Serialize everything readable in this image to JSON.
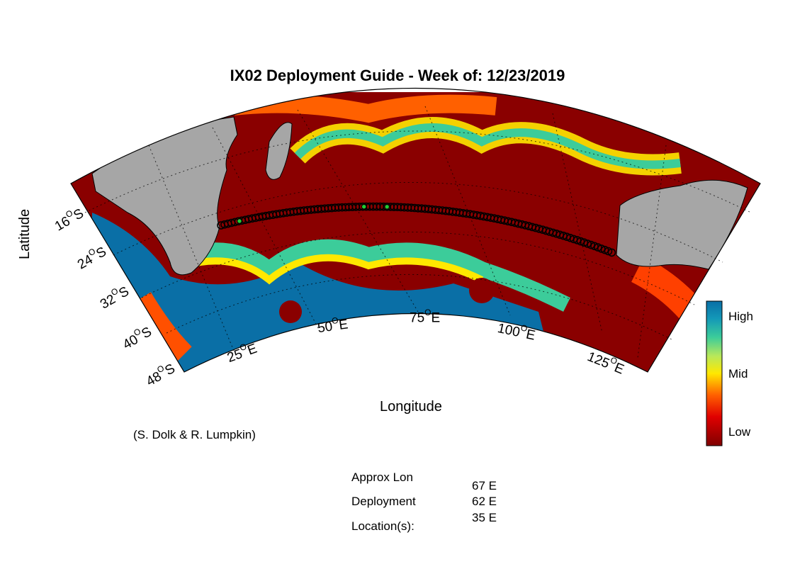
{
  "title": "IX02 Deployment Guide - Week of: 12/23/2019",
  "xlabel": "Longitude",
  "ylabel": "Latitude",
  "lat_ticks": [
    "16",
    "24",
    "32",
    "40",
    "48"
  ],
  "lat_suffix": "S",
  "lon_ticks": [
    "25",
    "50",
    "75",
    "100",
    "125"
  ],
  "lon_suffix": "E",
  "degree": "O",
  "credit": "(S. Dolk & R. Lumpkin)",
  "colorbar": {
    "high": "High",
    "mid": "Mid",
    "low": "Low"
  },
  "info": {
    "label_line1": "Approx Lon",
    "label_line2": "Deployment",
    "label_line3": "Location(s):",
    "values": [
      "67 E",
      "62 E",
      "35 E"
    ]
  },
  "colors": {
    "land": "#a6a6a6",
    "low": "#800000",
    "mid": "#ffe800",
    "high": "#0a6fa6",
    "marker_active": "#22cc33"
  },
  "deployment_lons": [
    35,
    62,
    67
  ]
}
